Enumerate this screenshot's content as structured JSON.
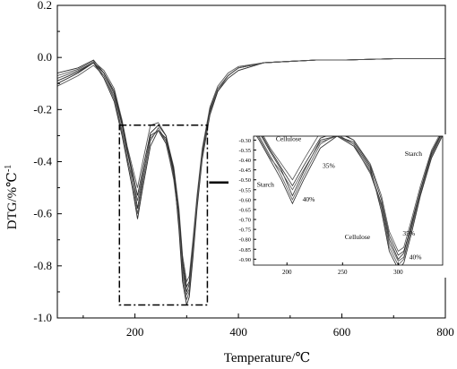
{
  "chart_data": {
    "type": "line",
    "xlabel": "Temperature/℃",
    "ylabel": "DTG/%℃",
    "ylabel_sup": "-1",
    "xlim": [
      50,
      800
    ],
    "ylim": [
      -1.0,
      0.2
    ],
    "x_ticks": [
      200,
      400,
      600,
      800
    ],
    "y_ticks": [
      0.2,
      0.0,
      -0.2,
      -0.4,
      -0.6,
      -0.8,
      -1.0
    ],
    "x_tick_labels": [
      "200",
      "400",
      "600",
      "800"
    ],
    "y_tick_labels": [
      "0.2",
      "0.0",
      "-0.2",
      "-0.4",
      "-0.6",
      "-0.8",
      "-1.0"
    ],
    "series": [
      {
        "x": [
          50,
          90,
          120,
          140,
          160,
          175,
          185,
          195,
          205,
          215,
          230,
          245,
          260,
          275,
          285,
          292,
          300,
          305,
          312,
          320,
          330,
          345,
          360,
          380,
          400,
          450,
          500,
          550,
          600,
          700,
          800
        ],
        "y": [
          -0.06,
          -0.04,
          -0.01,
          -0.06,
          -0.14,
          -0.26,
          -0.36,
          -0.45,
          -0.58,
          -0.46,
          -0.3,
          -0.28,
          -0.33,
          -0.46,
          -0.62,
          -0.8,
          -0.9,
          -0.87,
          -0.72,
          -0.55,
          -0.36,
          -0.2,
          -0.12,
          -0.07,
          -0.04,
          -0.02,
          -0.015,
          -0.01,
          -0.01,
          -0.005,
          -0.005
        ]
      },
      {
        "x": [
          50,
          90,
          120,
          140,
          160,
          175,
          185,
          195,
          205,
          215,
          230,
          245,
          260,
          275,
          285,
          292,
          300,
          305,
          312,
          320,
          330,
          345,
          360,
          380,
          400,
          450,
          500,
          550,
          600,
          700,
          800
        ],
        "y": [
          -0.08,
          -0.05,
          -0.02,
          -0.07,
          -0.15,
          -0.28,
          -0.38,
          -0.48,
          -0.6,
          -0.48,
          -0.32,
          -0.27,
          -0.32,
          -0.45,
          -0.64,
          -0.84,
          -0.93,
          -0.9,
          -0.75,
          -0.57,
          -0.38,
          -0.21,
          -0.13,
          -0.07,
          -0.04,
          -0.02,
          -0.015,
          -0.01,
          -0.01,
          -0.005,
          -0.005
        ]
      },
      {
        "x": [
          50,
          90,
          120,
          140,
          160,
          175,
          185,
          195,
          205,
          215,
          230,
          245,
          260,
          275,
          285,
          292,
          300,
          305,
          312,
          320,
          330,
          345,
          360,
          380,
          400,
          450,
          500,
          550,
          600,
          700,
          800
        ],
        "y": [
          -0.1,
          -0.06,
          -0.02,
          -0.08,
          -0.17,
          -0.3,
          -0.4,
          -0.5,
          -0.62,
          -0.5,
          -0.34,
          -0.28,
          -0.31,
          -0.44,
          -0.66,
          -0.86,
          -0.95,
          -0.92,
          -0.77,
          -0.58,
          -0.39,
          -0.22,
          -0.13,
          -0.08,
          -0.05,
          -0.02,
          -0.015,
          -0.01,
          -0.01,
          -0.005,
          -0.005
        ]
      },
      {
        "x": [
          50,
          90,
          120,
          140,
          160,
          175,
          185,
          195,
          205,
          215,
          230,
          245,
          260,
          275,
          285,
          292,
          300,
          305,
          312,
          320,
          330,
          345,
          360,
          380,
          400,
          450,
          500,
          550,
          600,
          700,
          800
        ],
        "y": [
          -0.07,
          -0.045,
          -0.015,
          -0.05,
          -0.12,
          -0.24,
          -0.34,
          -0.42,
          -0.5,
          -0.4,
          -0.26,
          -0.25,
          -0.3,
          -0.42,
          -0.58,
          -0.76,
          -0.86,
          -0.84,
          -0.7,
          -0.53,
          -0.35,
          -0.19,
          -0.11,
          -0.06,
          -0.035,
          -0.02,
          -0.015,
          -0.01,
          -0.01,
          -0.005,
          -0.005
        ]
      },
      {
        "x": [
          50,
          90,
          120,
          140,
          160,
          175,
          185,
          195,
          205,
          215,
          230,
          245,
          260,
          275,
          285,
          292,
          300,
          305,
          312,
          320,
          330,
          345,
          360,
          380,
          400,
          450,
          500,
          550,
          600,
          700,
          800
        ],
        "y": [
          -0.09,
          -0.055,
          -0.02,
          -0.06,
          -0.13,
          -0.25,
          -0.35,
          -0.44,
          -0.53,
          -0.43,
          -0.29,
          -0.26,
          -0.3,
          -0.43,
          -0.6,
          -0.78,
          -0.88,
          -0.86,
          -0.73,
          -0.55,
          -0.37,
          -0.2,
          -0.12,
          -0.07,
          -0.04,
          -0.02,
          -0.015,
          -0.01,
          -0.01,
          -0.005,
          -0.005
        ]
      },
      {
        "x": [
          50,
          90,
          120,
          140,
          160,
          175,
          185,
          195,
          205,
          215,
          230,
          245,
          260,
          275,
          285,
          292,
          300,
          305,
          312,
          320,
          330,
          345,
          360,
          380,
          400,
          450,
          500,
          550,
          600,
          700,
          800
        ],
        "y": [
          -0.11,
          -0.07,
          -0.03,
          -0.07,
          -0.16,
          -0.29,
          -0.39,
          -0.46,
          -0.55,
          -0.45,
          -0.31,
          -0.28,
          -0.32,
          -0.47,
          -0.63,
          -0.82,
          -0.91,
          -0.89,
          -0.74,
          -0.56,
          -0.38,
          -0.21,
          -0.12,
          -0.07,
          -0.04,
          -0.02,
          -0.015,
          -0.01,
          -0.01,
          -0.005,
          -0.005
        ]
      }
    ],
    "inset": {
      "xlim": [
        170,
        340
      ],
      "ylim": [
        -0.93,
        -0.28
      ],
      "x_ticks": [
        200,
        250,
        300
      ],
      "y_ticks": [
        -0.3,
        -0.35,
        -0.4,
        -0.45,
        -0.5,
        -0.55,
        -0.6,
        -0.65,
        -0.7,
        -0.75,
        -0.8,
        -0.85,
        -0.9
      ],
      "x_tick_labels": [
        "200",
        "250",
        "300"
      ],
      "y_tick_labels": [
        "-0.30",
        "-0.35",
        "-0.40",
        "-0.45",
        "-0.50",
        "-0.55",
        "-0.60",
        "-0.65",
        "-0.70",
        "-0.75",
        "-0.80",
        "-0.85",
        "-0.90"
      ],
      "annotations": [
        {
          "text": "Cellulose",
          "x": 190,
          "y": -0.305
        },
        {
          "text": "35%",
          "x": 232,
          "y": -0.44
        },
        {
          "text": "Starch",
          "x": 306,
          "y": -0.38
        },
        {
          "text": "Starch",
          "x": 173,
          "y": -0.535
        },
        {
          "text": "40%",
          "x": 214,
          "y": -0.61
        },
        {
          "text": "35%",
          "x": 304,
          "y": -0.78
        },
        {
          "text": "Cellulose",
          "x": 252,
          "y": -0.8
        },
        {
          "text": "40%",
          "x": 310,
          "y": -0.9
        }
      ]
    }
  }
}
